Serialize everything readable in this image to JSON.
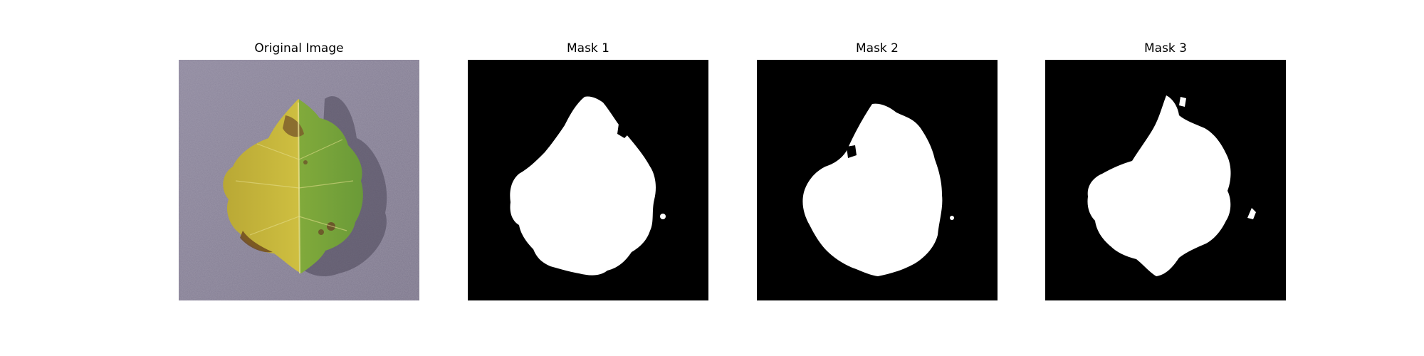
{
  "panels": [
    {
      "title": "Original Image",
      "kind": "photo"
    },
    {
      "title": "Mask 1",
      "kind": "mask"
    },
    {
      "title": "Mask 2",
      "kind": "mask"
    },
    {
      "title": "Mask 3",
      "kind": "mask"
    }
  ],
  "colors": {
    "mask_background": "#000000",
    "mask_foreground": "#ffffff",
    "photo_background": "#8a8498",
    "leaf_yellow": "#d6c93a",
    "leaf_green": "#7fae3c",
    "leaf_brown": "#7a5a2a"
  }
}
